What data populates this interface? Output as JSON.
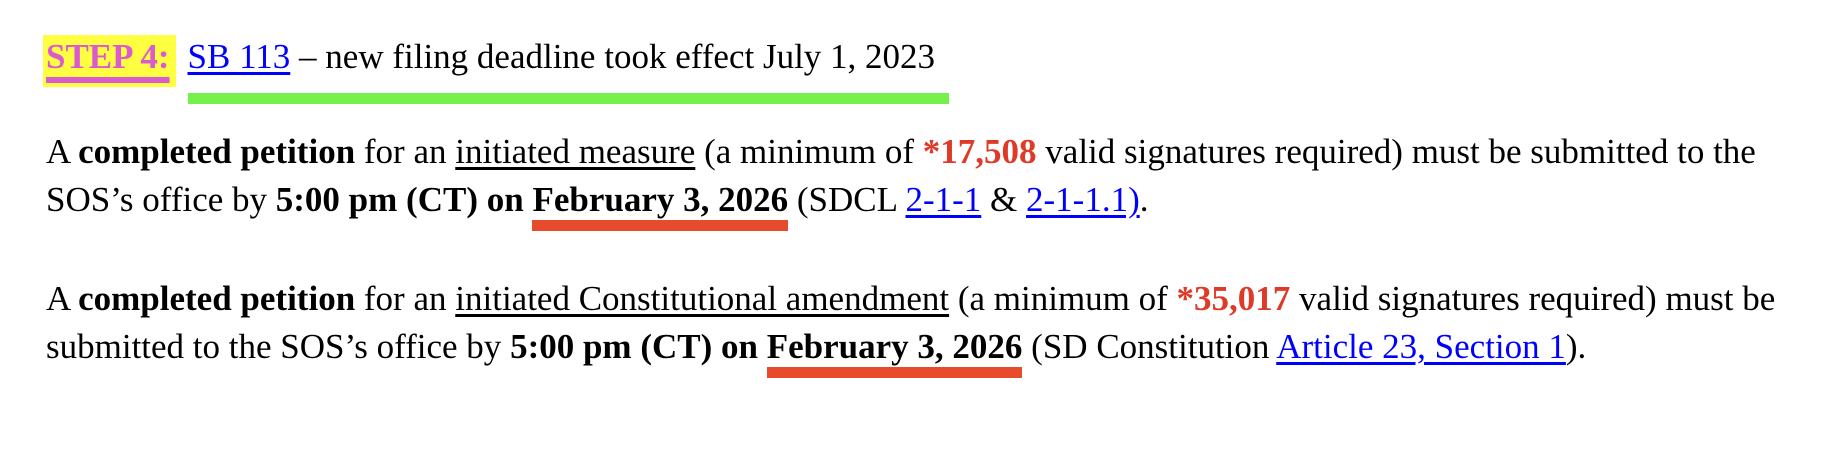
{
  "title": {
    "step_label": "STEP 4:",
    "bill_link": "SB 113",
    "tail": " – new filing deadline took effect July 1, 2023"
  },
  "measure_paragraph": {
    "r0": "A ",
    "r1": "completed petition",
    "r2": " for an ",
    "r3": "initiated measure",
    "r4": " (a minimum of ",
    "r5": "*17,508",
    "r6": " valid signatures required) must be submitted to the SOS’s office by ",
    "r7": "5:00 pm (CT) on ",
    "r8": "February 3, 2026",
    "r9": " (SDCL ",
    "r10": "2-1-1",
    "r11": " & ",
    "r12": "2-1-1.1)",
    "r13": "."
  },
  "amendment_paragraph": {
    "r0": "A ",
    "r1": "completed petition",
    "r2": " for an ",
    "r3": "initiated Constitutional amendment",
    "r4": " (a minimum of ",
    "r5": "*35,017",
    "r6": " valid signatures required) must be submitted to the SOS’s office by ",
    "r7": "5:00 pm (CT) on ",
    "r8": "February 3, 2026",
    "r9": " (SD Constitution ",
    "r10": "Article 23, Section 1",
    "r11": ")."
  },
  "colors": {
    "step_magenta": "#DC5ACF",
    "highlight_yellow": "#FFFF42",
    "link_blue": "#0000FF",
    "signature_red": "#DF3A28",
    "deadline_underline_red": "#E74B2B",
    "title_underline_green": "#76F04D"
  }
}
